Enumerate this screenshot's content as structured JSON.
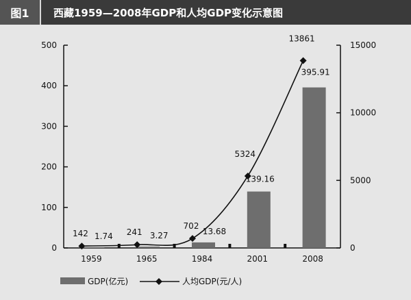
{
  "header": {
    "figure_label": "图1",
    "title": "西藏1959—2008年GDP和人均GDP变化示意图"
  },
  "colors": {
    "background": "#e6e6e6",
    "bar": "#6e6e6e",
    "line": "#111111",
    "header_bg": "#3a3a3a",
    "label_bg": "#545454"
  },
  "chart_data": {
    "type": "bar",
    "title": "西藏1959—2008年GDP和人均GDP变化示意图",
    "categories": [
      "1959",
      "1965",
      "1984",
      "2001",
      "2008"
    ],
    "series": [
      {
        "name": "GDP(亿元)",
        "type": "bar",
        "axis": "left",
        "values": [
          1.74,
          3.27,
          13.68,
          139.16,
          395.91
        ],
        "labels": [
          "1.74",
          "3.27",
          "13.68",
          "139.16",
          "395.91"
        ]
      },
      {
        "name": "人均GDP(元/人)",
        "type": "line",
        "marker": "diamond",
        "axis": "right",
        "values": [
          142,
          241,
          702,
          5324,
          13861
        ],
        "labels": [
          "142",
          "241",
          "702",
          "5324",
          "13861"
        ]
      }
    ],
    "ylim_left": [
      0,
      500
    ],
    "yticks_left": [
      "0",
      "100",
      "200",
      "300",
      "400",
      "500"
    ],
    "ylim_right": [
      0,
      15000
    ],
    "yticks_right": [
      "0",
      "5000",
      "10000",
      "15000"
    ],
    "grid": false,
    "legend_position": "bottom-left"
  }
}
